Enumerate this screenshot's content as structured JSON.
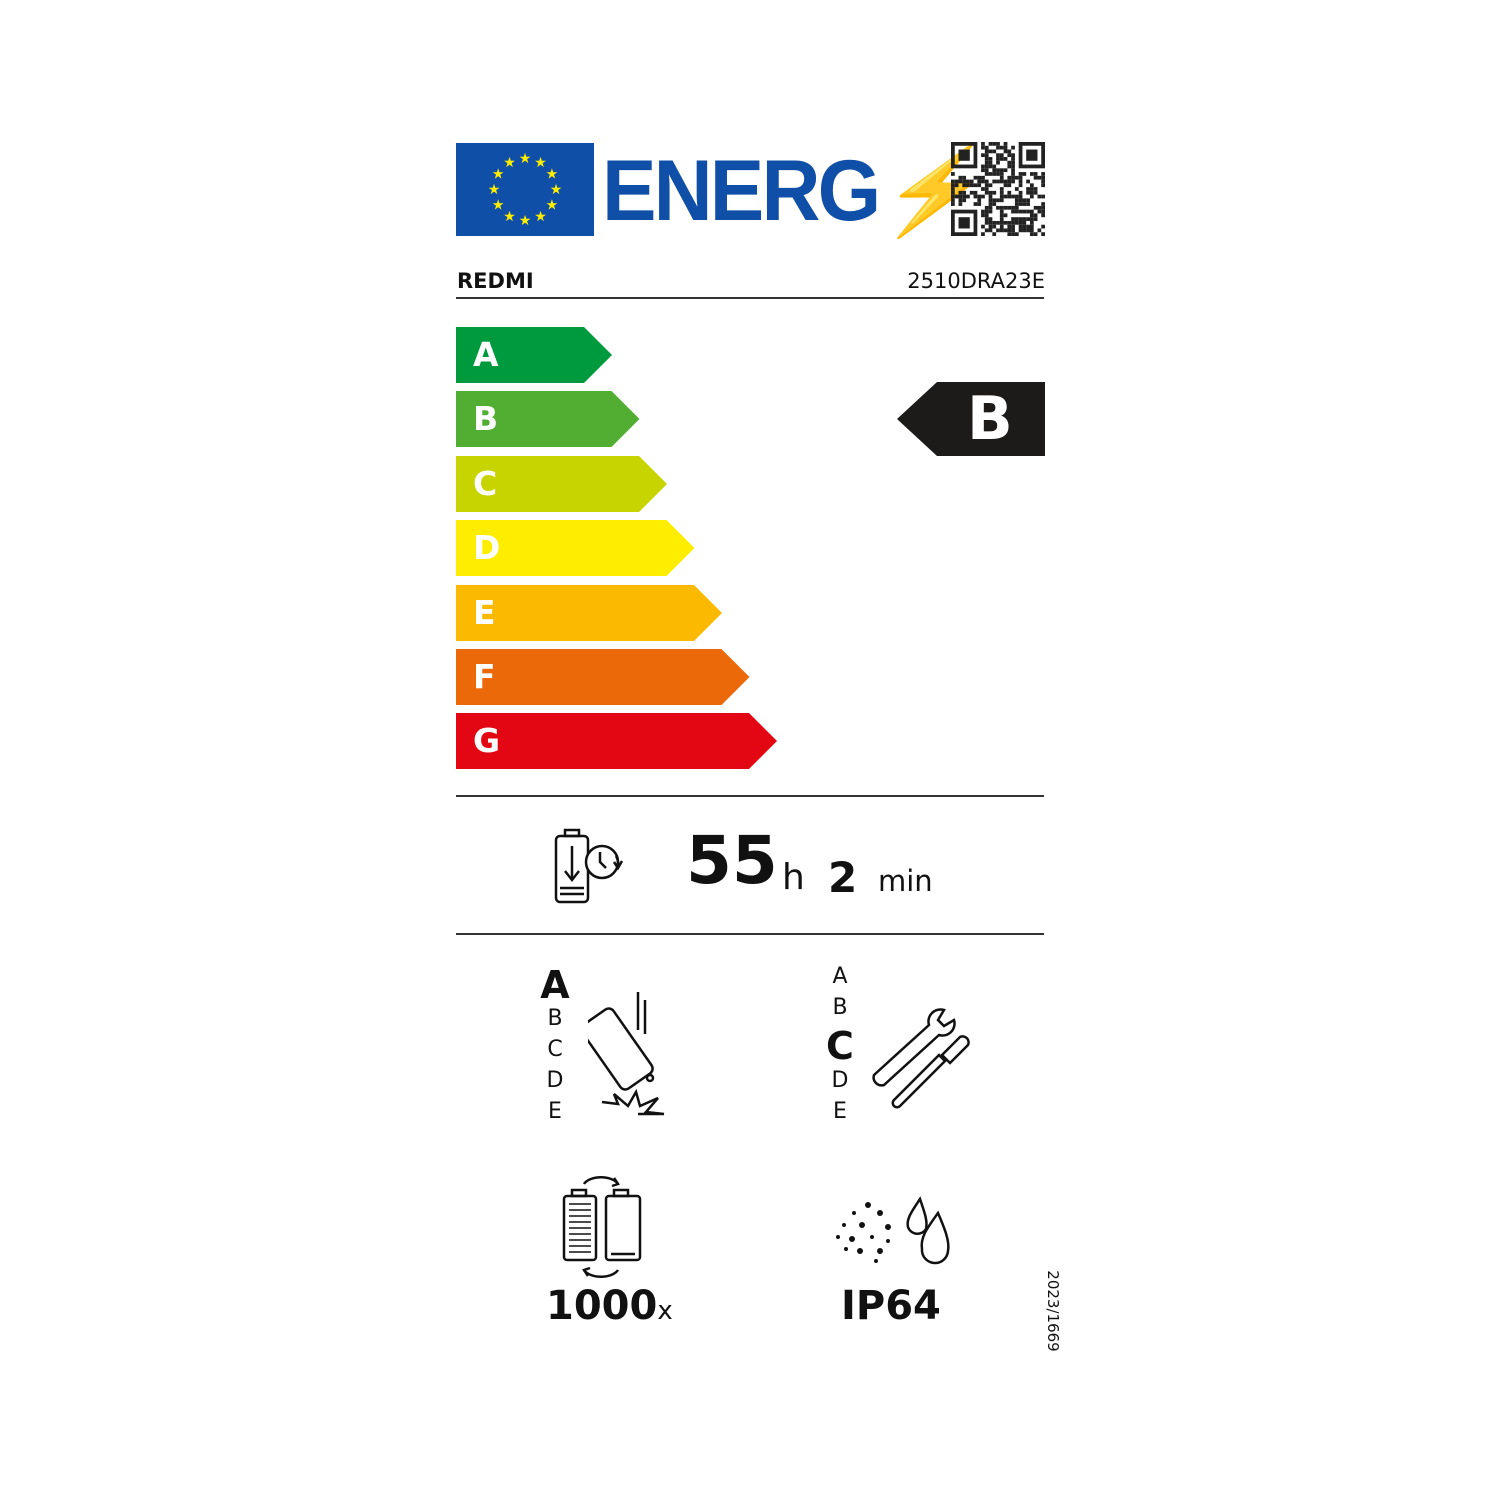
{
  "header": {
    "logo_text": "ENERG",
    "brand": "REDMI",
    "model": "2510DRA23E"
  },
  "scale": {
    "classes": [
      {
        "letter": "A",
        "color": "#009a3e"
      },
      {
        "letter": "B",
        "color": "#52ae32"
      },
      {
        "letter": "C",
        "color": "#c8d400"
      },
      {
        "letter": "D",
        "color": "#ffed00"
      },
      {
        "letter": "E",
        "color": "#fbba00"
      },
      {
        "letter": "F",
        "color": "#eb6909"
      },
      {
        "letter": "G",
        "color": "#e30613"
      }
    ],
    "rating": "B",
    "rating_color": "#1d1b1a"
  },
  "battery_endurance": {
    "hours": "55",
    "hours_unit": "h",
    "minutes": "2",
    "minutes_unit": "min"
  },
  "drop_resistance": {
    "classes": [
      "A",
      "B",
      "C",
      "D",
      "E"
    ],
    "rating": "A"
  },
  "repairability": {
    "classes": [
      "A",
      "B",
      "C",
      "D",
      "E"
    ],
    "rating": "C"
  },
  "battery_cycles": {
    "value": "1000",
    "unit": "x"
  },
  "ingress_protection": {
    "value": "IP64"
  },
  "regulation": "2023/1669"
}
